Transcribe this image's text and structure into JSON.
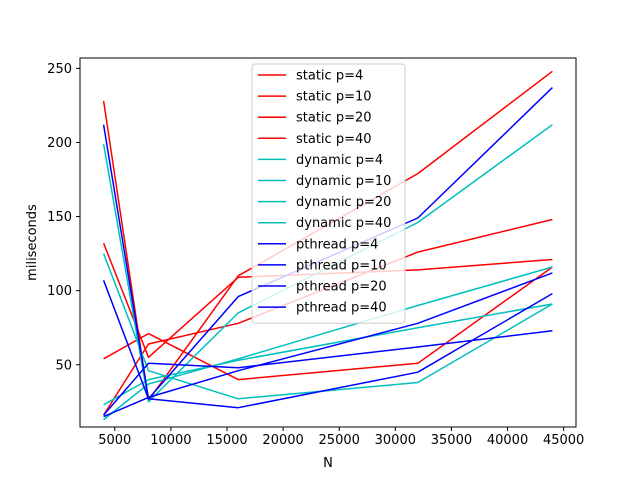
{
  "chart_data": {
    "type": "line",
    "title": "",
    "xlabel": "N",
    "ylabel": "miliseconds",
    "xlim": [
      1900,
      46100
    ],
    "ylim": [
      8,
      257
    ],
    "x_ticks": [
      5000,
      10000,
      15000,
      20000,
      25000,
      30000,
      35000,
      40000,
      45000
    ],
    "y_ticks": [
      50,
      100,
      150,
      200,
      250
    ],
    "grid": false,
    "legend_position": "upper center",
    "x": [
      4000,
      8000,
      16000,
      32000,
      44000
    ],
    "series": [
      {
        "name": "static p=4",
        "color": "#ff0000",
        "values": [
          228,
          26,
          110,
          179,
          248
        ]
      },
      {
        "name": "static p=10",
        "color": "#ff0000",
        "values": [
          132,
          55,
          109,
          114,
          121
        ]
      },
      {
        "name": "static p=20",
        "color": "#ff0000",
        "values": [
          54,
          71,
          40,
          51,
          116
        ]
      },
      {
        "name": "static p=40",
        "color": "#ff0000",
        "values": [
          16,
          64,
          78,
          126,
          148
        ]
      },
      {
        "name": "dynamic p=4",
        "color": "#00bfbf",
        "values": [
          199,
          25,
          85,
          146,
          212
        ]
      },
      {
        "name": "dynamic p=10",
        "color": "#00bfbf",
        "values": [
          125,
          46,
          27,
          38,
          91
        ]
      },
      {
        "name": "dynamic p=20",
        "color": "#00bfbf",
        "values": [
          23,
          40,
          53,
          75,
          91
        ]
      },
      {
        "name": "dynamic p=40",
        "color": "#00bfbf",
        "values": [
          13,
          37,
          54,
          90,
          116
        ]
      },
      {
        "name": "pthread p=4",
        "color": "#0000ff",
        "values": [
          212,
          27,
          96,
          149,
          237
        ]
      },
      {
        "name": "pthread p=10",
        "color": "#0000ff",
        "values": [
          107,
          27,
          21,
          45,
          98
        ]
      },
      {
        "name": "pthread p=20",
        "color": "#0000ff",
        "values": [
          16,
          51,
          48,
          62,
          73
        ]
      },
      {
        "name": "pthread p=40",
        "color": "#0000ff",
        "values": [
          15,
          28,
          46,
          78,
          112
        ]
      }
    ]
  }
}
